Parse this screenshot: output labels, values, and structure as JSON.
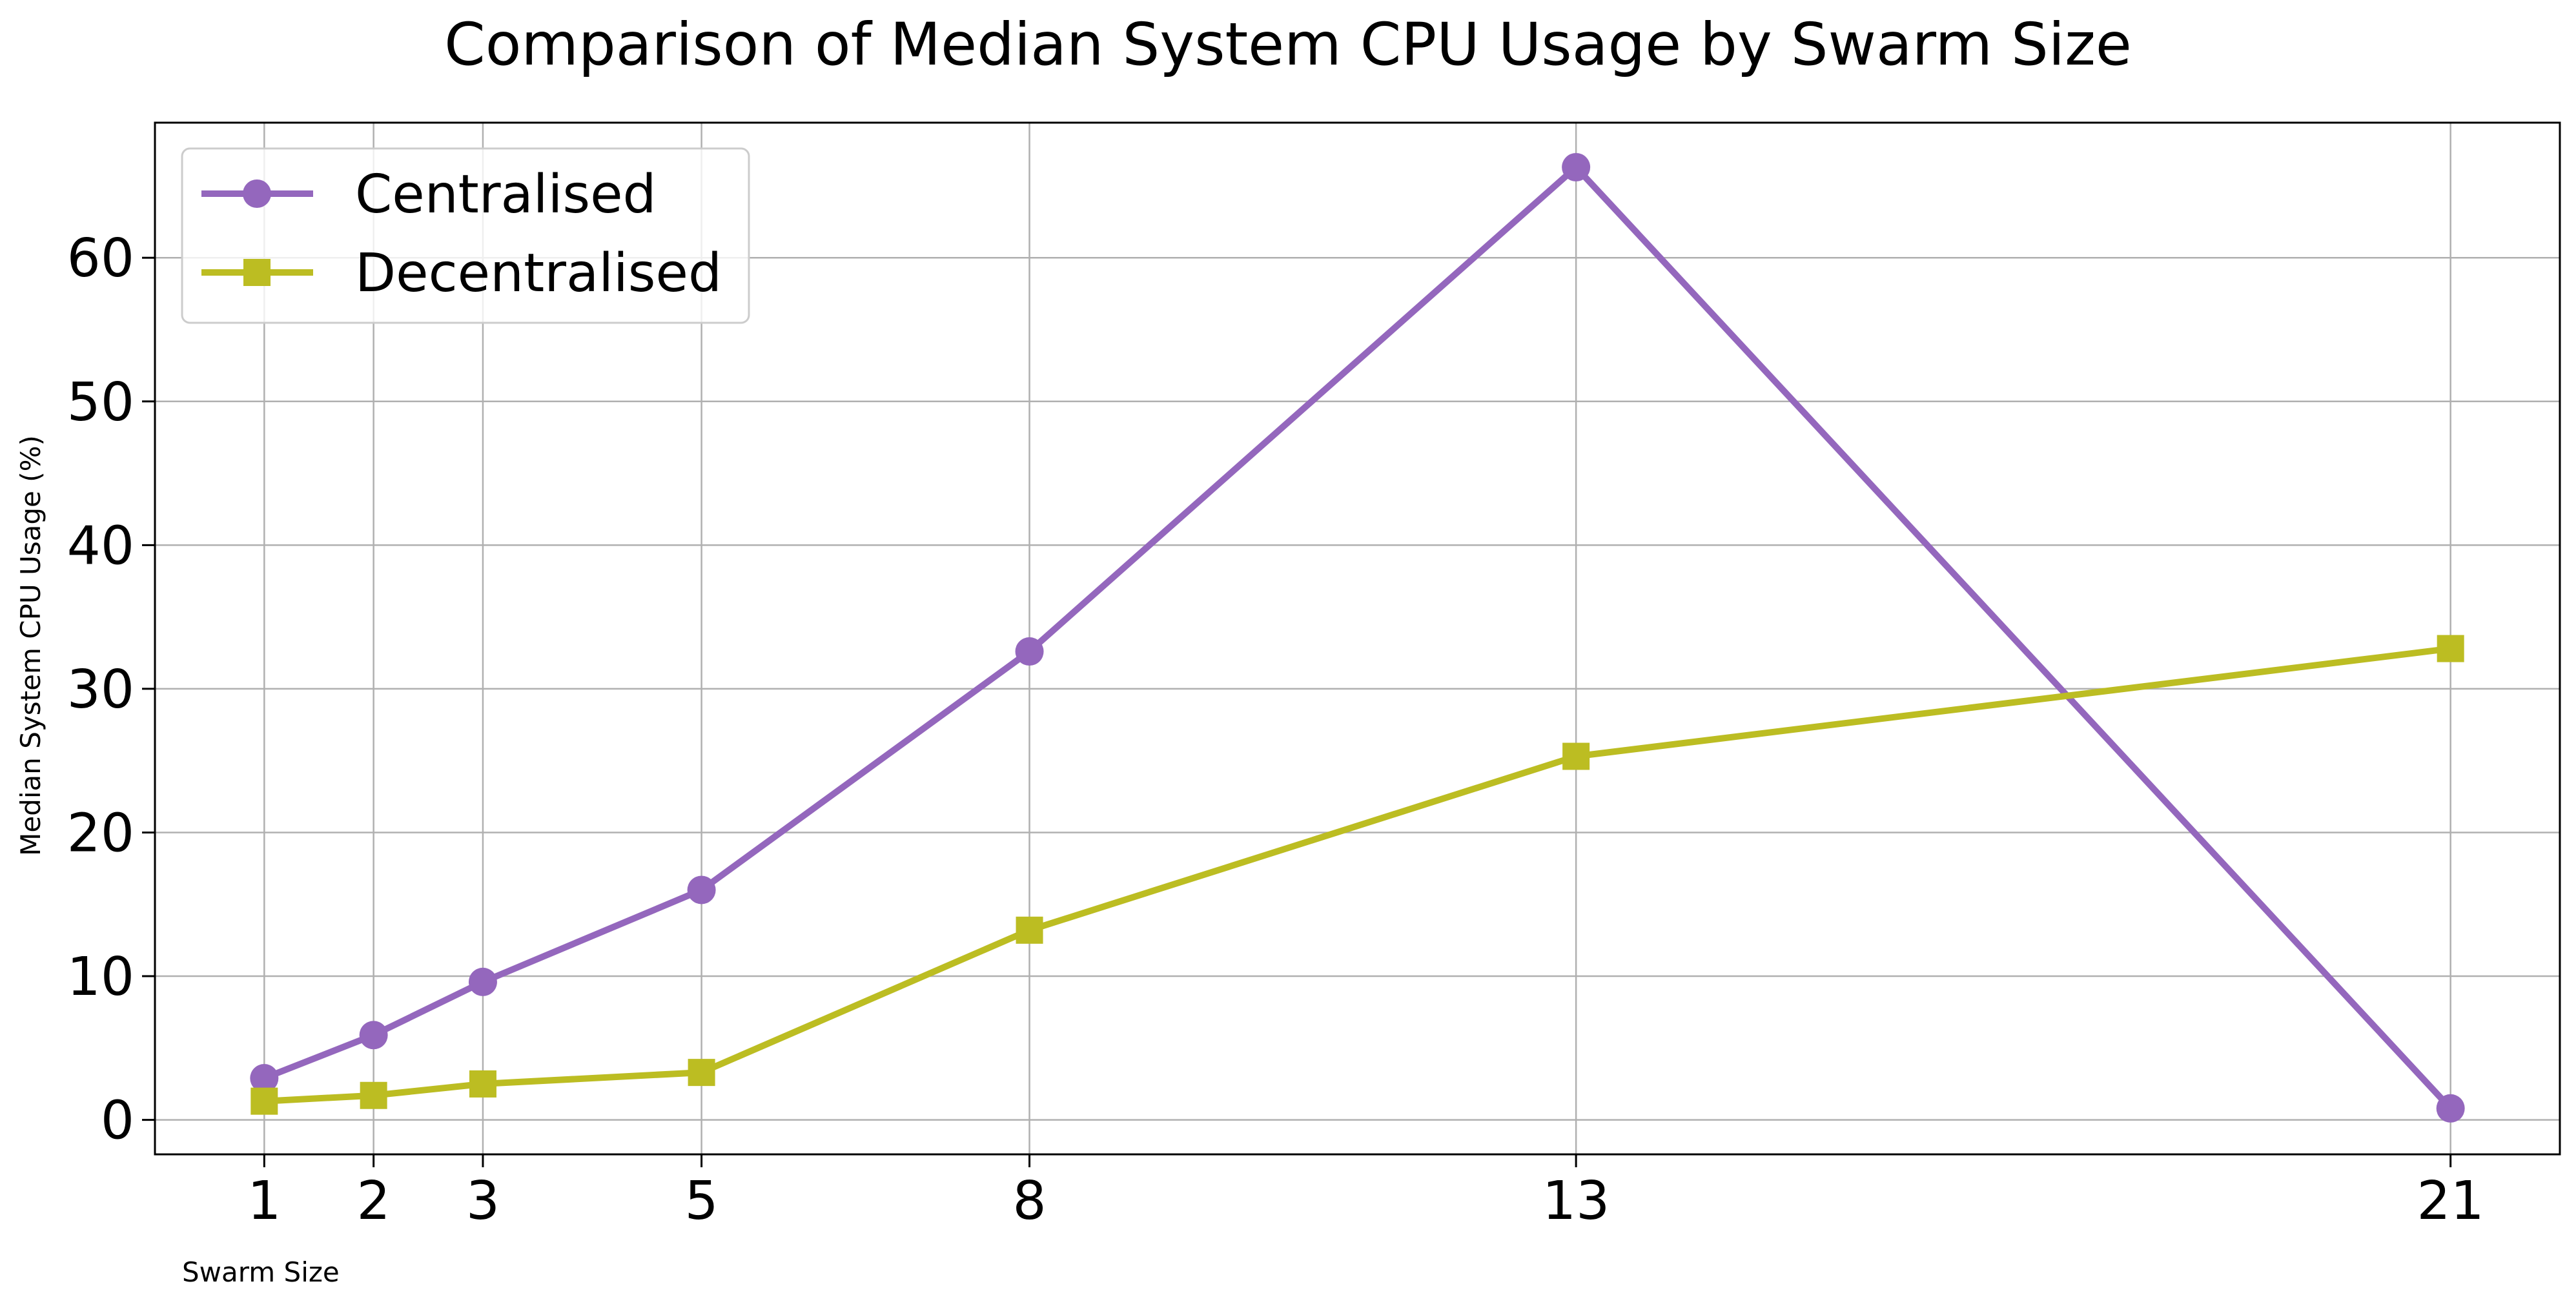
{
  "chart_data": {
    "type": "line",
    "title": "Comparison of Median System CPU Usage by Swarm Size",
    "xlabel": "Swarm Size",
    "ylabel": "Median System CPU Usage (%)",
    "x": [
      1,
      2,
      3,
      5,
      8,
      13,
      21
    ],
    "x_ticks": [
      "1",
      "2",
      "3",
      "5",
      "8",
      "13",
      "21"
    ],
    "y_ticks": [
      0,
      10,
      20,
      30,
      40,
      50,
      60
    ],
    "xlim": [
      0,
      22
    ],
    "ylim": [
      -2.4,
      69.4
    ],
    "grid": true,
    "legend_position": "top-left",
    "series": [
      {
        "name": "Centralised",
        "color": "#9467bd",
        "marker": "circle",
        "values": [
          2.9,
          5.9,
          9.6,
          16.0,
          32.6,
          66.3,
          0.8
        ]
      },
      {
        "name": "Decentralised",
        "color": "#bcbd22",
        "marker": "square",
        "values": [
          1.3,
          1.7,
          2.5,
          3.3,
          13.2,
          25.3,
          32.8
        ]
      }
    ]
  }
}
